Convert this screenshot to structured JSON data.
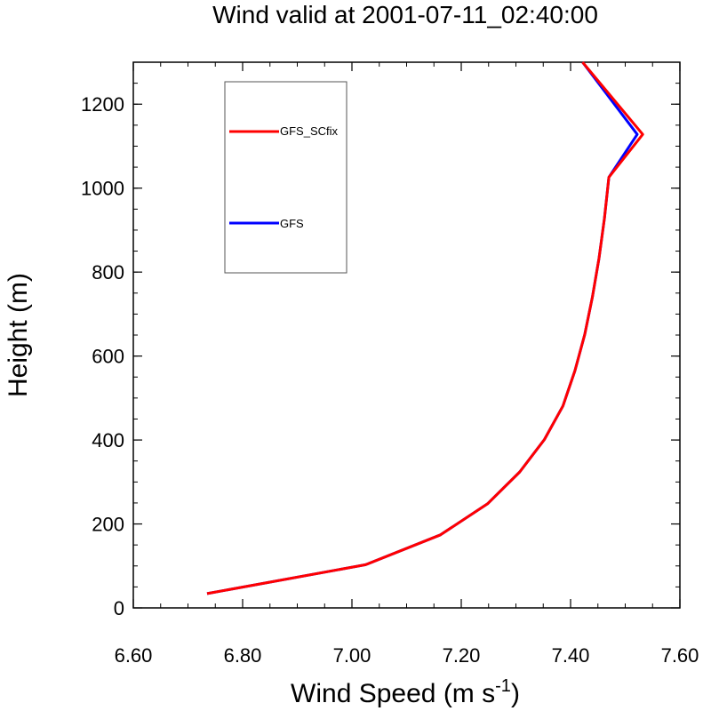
{
  "chart_data": {
    "type": "line",
    "title": "Wind valid at 2001-07-11_02:40:00",
    "xlabel": "Wind Speed (m s",
    "xlabel_superscript": "-1",
    "xlabel_suffix": ")",
    "ylabel": "Height (m)",
    "xlim": [
      6.6,
      7.6
    ],
    "ylim": [
      0,
      1300
    ],
    "xticks": [
      6.6,
      6.8,
      7.0,
      7.2,
      7.4,
      7.6
    ],
    "xtick_labels": [
      "6.60",
      "6.80",
      "7.00",
      "7.20",
      "7.40",
      "7.60"
    ],
    "yticks": [
      0,
      200,
      400,
      600,
      800,
      1000,
      1200
    ],
    "ytick_labels": [
      "0",
      "200",
      "400",
      "600",
      "800",
      "1000",
      "1200"
    ],
    "grid": false,
    "legend_position": "top-left",
    "series": [
      {
        "name": "GFS",
        "color": "#0000ff",
        "points": [
          [
            6.735,
            34
          ],
          [
            7.025,
            103
          ],
          [
            7.162,
            174
          ],
          [
            7.248,
            248
          ],
          [
            7.307,
            324
          ],
          [
            7.352,
            401
          ],
          [
            7.386,
            481
          ],
          [
            7.408,
            565
          ],
          [
            7.426,
            652
          ],
          [
            7.44,
            741
          ],
          [
            7.452,
            833
          ],
          [
            7.462,
            928
          ],
          [
            7.47,
            1026
          ],
          [
            7.522,
            1128
          ],
          [
            7.422,
            1300
          ]
        ]
      },
      {
        "name": "GFS_SCfix",
        "color": "#ff0000",
        "points": [
          [
            6.735,
            34
          ],
          [
            7.025,
            103
          ],
          [
            7.162,
            174
          ],
          [
            7.248,
            248
          ],
          [
            7.307,
            324
          ],
          [
            7.352,
            401
          ],
          [
            7.386,
            481
          ],
          [
            7.408,
            565
          ],
          [
            7.426,
            652
          ],
          [
            7.44,
            741
          ],
          [
            7.452,
            833
          ],
          [
            7.462,
            928
          ],
          [
            7.47,
            1026
          ],
          [
            7.532,
            1128
          ],
          [
            7.422,
            1300
          ]
        ]
      }
    ],
    "legend_entries": [
      "GFS_SCfix",
      "GFS"
    ]
  }
}
